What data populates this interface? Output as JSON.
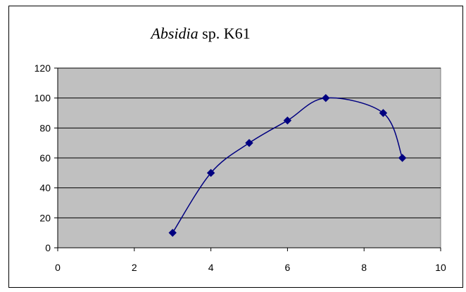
{
  "chart_data": {
    "type": "line",
    "title_italic": "Absidia",
    "title_rest": " sp. K61",
    "xlabel": "",
    "ylabel": "",
    "xlim": [
      0,
      10
    ],
    "ylim": [
      0,
      120
    ],
    "x_ticks": [
      "0",
      "2",
      "4",
      "6",
      "8",
      "10"
    ],
    "y_ticks": [
      "0",
      "20",
      "40",
      "60",
      "80",
      "100",
      "120"
    ],
    "grid": "horizontal",
    "plot_background": "#c0c0c0",
    "series": [
      {
        "color": "#000080",
        "marker": "diamond",
        "smooth": true,
        "x": [
          3,
          4,
          5,
          6,
          7,
          8.5,
          9
        ],
        "y": [
          10,
          50,
          70,
          85,
          100,
          90,
          60
        ]
      }
    ]
  }
}
